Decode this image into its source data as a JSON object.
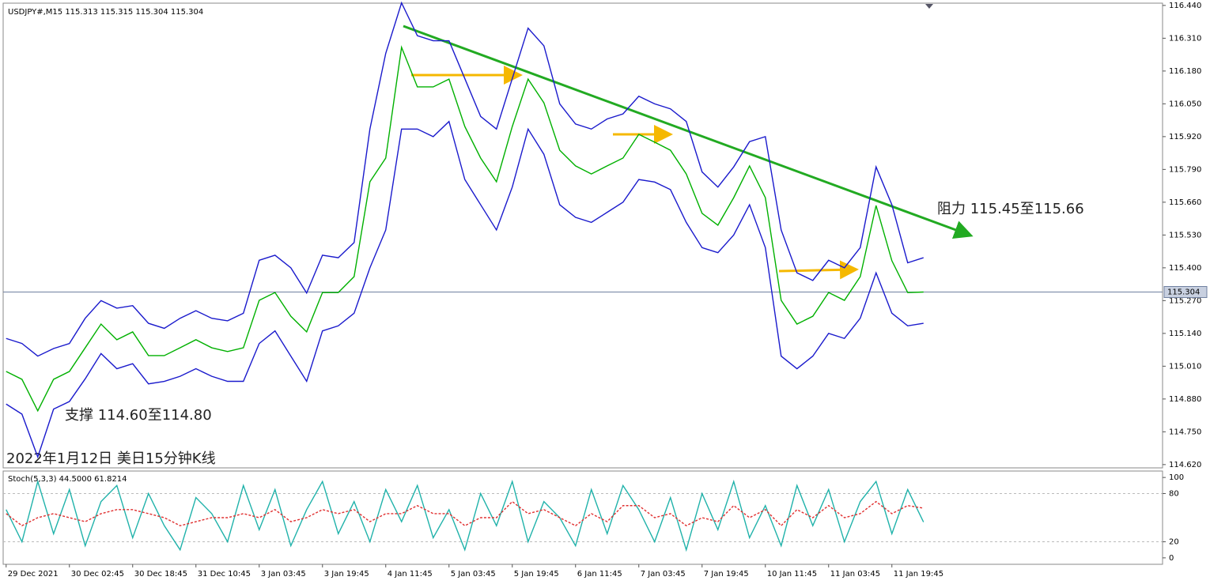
{
  "chart_data": [
    {
      "type": "line",
      "title": "USDJPY#,M15  115.313 115.315 115.304 115.304",
      "last_price": 115.304,
      "annotations": [
        "阻力 115.45至115.66",
        "支撑 114.60至114.80",
        "2022年1月12日 美日15分钟K线"
      ],
      "x": [
        0,
        16,
        32,
        48,
        64,
        80,
        96,
        112,
        128,
        144,
        160,
        176,
        192,
        208,
        224,
        240,
        256,
        272,
        288,
        304,
        320,
        336,
        352,
        368,
        384,
        400,
        416,
        432,
        448,
        464,
        480,
        496,
        512,
        528,
        544,
        560,
        576,
        592,
        608,
        624,
        640,
        656,
        672,
        688,
        704,
        720,
        736,
        752,
        768,
        784,
        800,
        816,
        832,
        848,
        864,
        880,
        896,
        912,
        928
      ],
      "xlim": [
        -3,
        1169.8
      ],
      "ylim": [
        114.607,
        116.449
      ],
      "yticks": [
        {
          "value": 116.44,
          "label": "116.440"
        },
        {
          "value": 116.31,
          "label": "116.310"
        },
        {
          "value": 116.18,
          "label": "116.180"
        },
        {
          "value": 116.05,
          "label": "116.050"
        },
        {
          "value": 115.92,
          "label": "115.920"
        },
        {
          "value": 115.79,
          "label": "115.790"
        },
        {
          "value": 115.66,
          "label": "115.660"
        },
        {
          "value": 115.53,
          "label": "115.530"
        },
        {
          "value": 115.4,
          "label": "115.400"
        },
        {
          "value": 115.27,
          "label": "115.270"
        },
        {
          "value": 115.14,
          "label": "115.140"
        },
        {
          "value": 115.01,
          "label": "115.010"
        },
        {
          "value": 114.88,
          "label": "114.880"
        },
        {
          "value": 114.75,
          "label": "114.750"
        },
        {
          "value": 114.62,
          "label": "114.620"
        }
      ],
      "series": [
        {
          "color": "#00b000",
          "values": [
            114.989,
            114.958,
            114.833,
            114.958,
            114.989,
            115.083,
            115.177,
            115.115,
            115.146,
            115.052,
            115.052,
            115.083,
            115.115,
            115.083,
            115.068,
            115.083,
            115.271,
            115.302,
            115.208,
            115.146,
            115.302,
            115.302,
            115.365,
            115.741,
            115.835,
            116.274,
            116.117,
            116.117,
            116.148,
            115.96,
            115.835,
            115.741,
            115.96,
            116.148,
            116.054,
            115.866,
            115.804,
            115.772,
            115.804,
            115.835,
            115.929,
            115.898,
            115.866,
            115.772,
            115.616,
            115.569,
            115.678,
            115.804,
            115.678,
            115.271,
            115.177,
            115.208,
            115.302,
            115.271,
            115.365,
            115.647,
            115.428,
            115.302,
            115.304
          ]
        },
        {
          "color": "#1a1acc",
          "values": [
            115.12,
            115.1,
            115.05,
            115.08,
            115.1,
            115.2,
            115.27,
            115.24,
            115.25,
            115.18,
            115.16,
            115.2,
            115.23,
            115.2,
            115.19,
            115.22,
            115.43,
            115.45,
            115.4,
            115.3,
            115.45,
            115.44,
            115.5,
            115.95,
            116.25,
            116.45,
            116.32,
            116.3,
            116.3,
            116.15,
            116.0,
            115.95,
            116.15,
            116.35,
            116.28,
            116.05,
            115.97,
            115.95,
            115.99,
            116.01,
            116.08,
            116.05,
            116.03,
            115.98,
            115.78,
            115.72,
            115.8,
            115.9,
            115.92,
            115.55,
            115.38,
            115.35,
            115.43,
            115.4,
            115.48,
            115.8,
            115.65,
            115.42,
            115.44
          ]
        },
        {
          "color": "#1a1acc",
          "values": [
            114.86,
            114.82,
            114.65,
            114.84,
            114.87,
            114.96,
            115.06,
            115.0,
            115.02,
            114.94,
            114.95,
            114.97,
            115.0,
            114.97,
            114.95,
            114.95,
            115.1,
            115.15,
            115.05,
            114.95,
            115.15,
            115.17,
            115.22,
            115.4,
            115.55,
            115.95,
            115.95,
            115.92,
            115.98,
            115.75,
            115.65,
            115.55,
            115.72,
            115.95,
            115.85,
            115.65,
            115.6,
            115.58,
            115.62,
            115.66,
            115.75,
            115.74,
            115.71,
            115.58,
            115.48,
            115.46,
            115.53,
            115.65,
            115.48,
            115.05,
            115.0,
            115.05,
            115.14,
            115.12,
            115.2,
            115.38,
            115.22,
            115.17,
            115.18
          ]
        }
      ]
    },
    {
      "type": "line",
      "title": "Stoch(5,3,3) 44.5000 61.8214",
      "x": [
        0,
        16,
        32,
        48,
        64,
        80,
        96,
        112,
        128,
        144,
        160,
        176,
        192,
        208,
        224,
        240,
        256,
        272,
        288,
        304,
        320,
        336,
        352,
        368,
        384,
        400,
        416,
        432,
        448,
        464,
        480,
        496,
        512,
        528,
        544,
        560,
        576,
        592,
        608,
        624,
        640,
        656,
        672,
        688,
        704,
        720,
        736,
        752,
        768,
        784,
        800,
        816,
        832,
        848,
        864,
        880,
        896,
        912,
        928
      ],
      "xlim": [
        -3,
        1169.8
      ],
      "xticks": [
        {
          "value": 0,
          "label": "29 Dec 2021"
        },
        {
          "value": 64,
          "label": "30 Dec 02:45"
        },
        {
          "value": 128,
          "label": "30 Dec 18:45"
        },
        {
          "value": 192,
          "label": "31 Dec 10:45"
        },
        {
          "value": 256,
          "label": "3 Jan 03:45"
        },
        {
          "value": 320,
          "label": "3 Jan 19:45"
        },
        {
          "value": 384,
          "label": "4 Jan 11:45"
        },
        {
          "value": 448,
          "label": "5 Jan 03:45"
        },
        {
          "value": 512,
          "label": "5 Jan 19:45"
        },
        {
          "value": 576,
          "label": "6 Jan 11:45"
        },
        {
          "value": 640,
          "label": "7 Jan 03:45"
        },
        {
          "value": 704,
          "label": "7 Jan 19:45"
        },
        {
          "value": 768,
          "label": "10 Jan 11:45"
        },
        {
          "value": 832,
          "label": "11 Jan 03:45"
        },
        {
          "value": 896,
          "label": "11 Jan 19:45"
        }
      ],
      "ylim": [
        -8,
        108
      ],
      "yticks": [
        100,
        80,
        20,
        0
      ],
      "levels": [
        80,
        20
      ],
      "series": [
        {
          "color": "#20b2aa",
          "values": [
            60,
            20,
            95,
            30,
            85,
            15,
            70,
            90,
            25,
            80,
            40,
            10,
            75,
            55,
            20,
            90,
            35,
            85,
            15,
            60,
            95,
            30,
            70,
            20,
            85,
            45,
            90,
            25,
            60,
            10,
            80,
            40,
            95,
            20,
            70,
            50,
            15,
            85,
            30,
            90,
            60,
            20,
            75,
            10,
            80,
            35,
            95,
            25,
            65,
            15,
            90,
            40,
            85,
            20,
            70,
            95,
            30,
            85,
            44.5
          ]
        },
        {
          "color": "#e03030",
          "dashed": true,
          "values": [
            55,
            40,
            50,
            55,
            50,
            45,
            55,
            60,
            60,
            55,
            50,
            40,
            45,
            50,
            50,
            55,
            50,
            60,
            45,
            50,
            60,
            55,
            60,
            45,
            55,
            55,
            65,
            55,
            55,
            40,
            50,
            50,
            70,
            55,
            60,
            50,
            40,
            55,
            45,
            65,
            65,
            50,
            55,
            40,
            50,
            45,
            65,
            50,
            60,
            40,
            60,
            50,
            65,
            50,
            55,
            70,
            55,
            65,
            61.8214
          ]
        }
      ]
    }
  ]
}
